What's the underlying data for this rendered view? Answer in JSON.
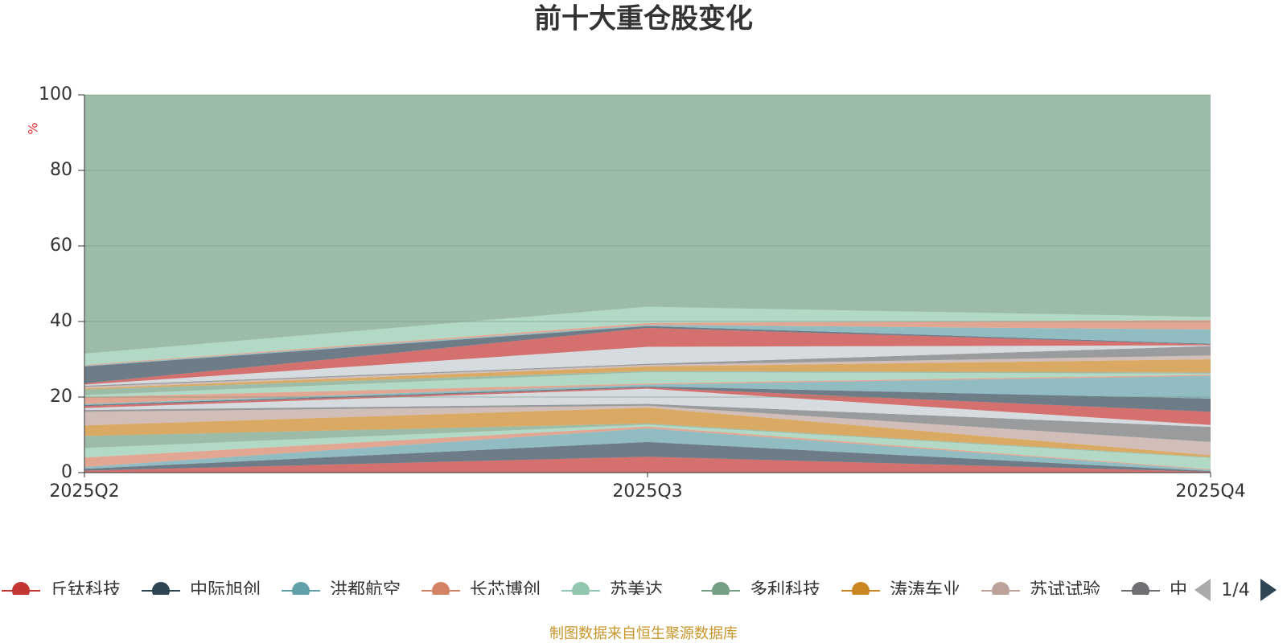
{
  "chart_data": {
    "type": "stacked_area",
    "title": "前十大重仓股变化",
    "y_label": "%",
    "categories": [
      "2025Q2",
      "2025Q3",
      "2025Q4"
    ],
    "ylim": [
      0,
      100
    ],
    "yticks": [
      0,
      20,
      40,
      60,
      80,
      100
    ],
    "grid": true,
    "legend_page": "1/4",
    "source": "制图数据来自恒生聚源数据库",
    "series": [
      {
        "name": "丘钛科技",
        "color": "#c23531",
        "values": [
          0.5,
          4.2,
          0.2
        ]
      },
      {
        "name": "中际旭创",
        "color": "#2f4554",
        "values": [
          0.5,
          3.9,
          0.2
        ]
      },
      {
        "name": "洪都航空",
        "color": "#61a0a8",
        "values": [
          0.5,
          3.6,
          0.3
        ]
      },
      {
        "name": "长芯博创",
        "color": "#d48265",
        "values": [
          2.5,
          0.5,
          0.2
        ]
      },
      {
        "name": "苏美达",
        "color": "#91c7ae",
        "values": [
          2.5,
          0.5,
          3.0
        ]
      },
      {
        "name": "多利科技",
        "color": "#749f83",
        "values": [
          3.2,
          0.3,
          0.2
        ]
      },
      {
        "name": "涛涛车业",
        "color": "#ca8622",
        "values": [
          2.8,
          4.2,
          0.5
        ]
      },
      {
        "name": "苏试试验",
        "color": "#bda29a",
        "values": [
          3.6,
          0.5,
          3.5
        ]
      },
      {
        "name": "中",
        "color": "#6e7074",
        "values": [
          0.5,
          0.5,
          4.0
        ]
      },
      {
        "color": "#c4ccd3",
        "values": [
          0.5,
          4.0,
          0.5
        ]
      },
      {
        "color": "#c23531",
        "values": [
          0.5,
          0.3,
          3.5
        ]
      },
      {
        "color": "#2f4554",
        "values": [
          0.3,
          0.3,
          3.5
        ]
      },
      {
        "color": "#61a0a8",
        "values": [
          0.3,
          0.5,
          6.0
        ]
      },
      {
        "color": "#d48265",
        "values": [
          1.8,
          0.3,
          0.3
        ]
      },
      {
        "color": "#91c7ae",
        "values": [
          0.5,
          3.0,
          0.3
        ]
      },
      {
        "color": "#749f83",
        "values": [
          1.5,
          0.3,
          0.3
        ]
      },
      {
        "color": "#ca8622",
        "values": [
          0.3,
          1.2,
          3.5
        ]
      },
      {
        "color": "#bda29a",
        "values": [
          0.4,
          0.4,
          1.0
        ]
      },
      {
        "color": "#6e7074",
        "values": [
          0.3,
          0.3,
          2.5
        ]
      },
      {
        "color": "#c4ccd3",
        "values": [
          0.3,
          4.5,
          0.2
        ]
      },
      {
        "color": "#c23531",
        "values": [
          0.3,
          5.0,
          0.2
        ]
      },
      {
        "color": "#2f4554",
        "values": [
          4.5,
          0.5,
          0.2
        ]
      },
      {
        "color": "#61a0a8",
        "values": [
          0.2,
          0.3,
          3.8
        ]
      },
      {
        "color": "#d48265",
        "values": [
          0.2,
          0.5,
          2.5
        ]
      },
      {
        "color": "#91c7ae",
        "values": [
          3.0,
          4.3,
          0.8
        ]
      },
      {
        "color": "#749f83",
        "values": [
          68.5,
          56.1,
          58.8
        ]
      }
    ]
  }
}
